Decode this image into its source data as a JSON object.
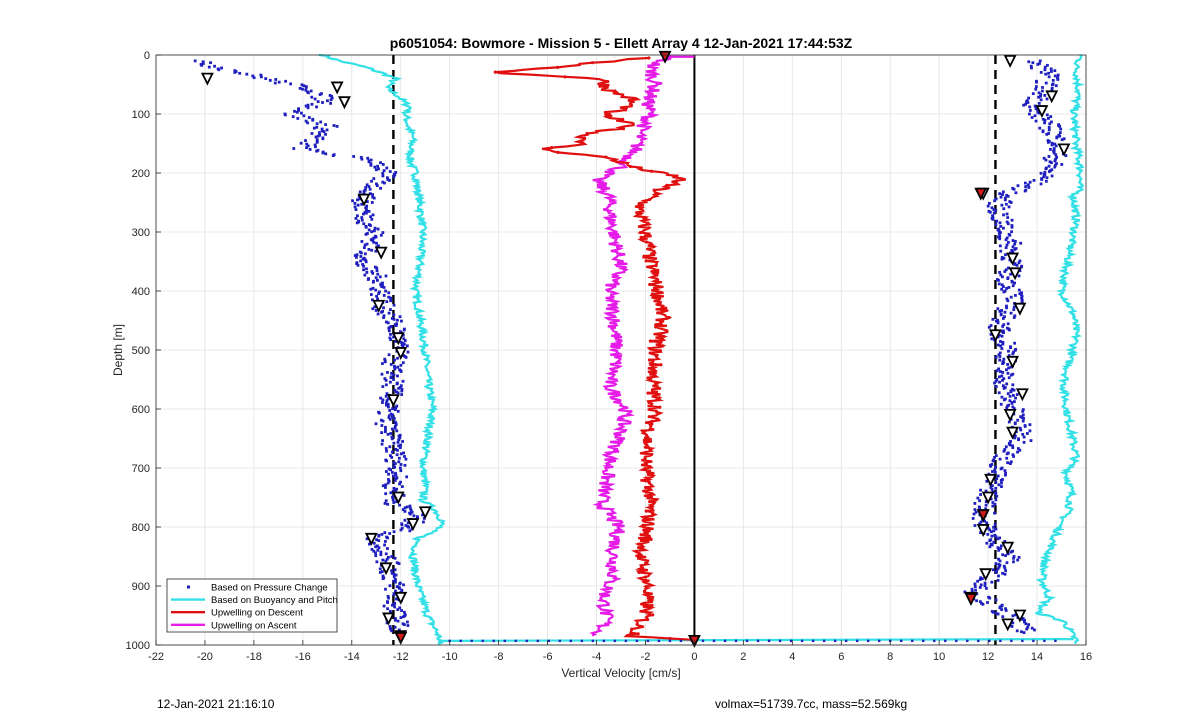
{
  "chart_data": {
    "type": "scatter",
    "title": "p6051054: Bowmore - Mission 5 - Ellett Array 4 12-Jan-2021 17:44:53Z",
    "xlabel": "Vertical Velocity [cm/s]",
    "ylabel": "Depth [m]",
    "xlim": [
      -22,
      16
    ],
    "ylim": [
      0,
      1000
    ],
    "y_reversed": true,
    "grid": true,
    "legend_position": "bottom-left",
    "x_ticks": [
      "-22",
      "-20",
      "-18",
      "-16",
      "-14",
      "-12",
      "-10",
      "-8",
      "-6",
      "-4",
      "-2",
      "0",
      "2",
      "4",
      "6",
      "8",
      "10",
      "12",
      "14",
      "16"
    ],
    "y_ticks": [
      "0",
      "100",
      "200",
      "300",
      "400",
      "500",
      "600",
      "700",
      "800",
      "900",
      "1000"
    ],
    "reference_lines": [
      {
        "x": -12.3,
        "style": "dashed",
        "color": "#000000"
      },
      {
        "x": 12.3,
        "style": "dashed",
        "color": "#000000"
      },
      {
        "x": 0,
        "style": "solid",
        "color": "#000000"
      }
    ],
    "series": [
      {
        "name": "Based on Pressure Change",
        "style": "points",
        "color": "#1f1fbf",
        "descent": {
          "depth": [
            10,
            25,
            40,
            60,
            80,
            100,
            120,
            140,
            160,
            180,
            200,
            230,
            250,
            280,
            300,
            330,
            350,
            380,
            400,
            430,
            460,
            500,
            530,
            560,
            590,
            620,
            650,
            680,
            700,
            730,
            760,
            780,
            800,
            820,
            850,
            880,
            910,
            940,
            960,
            980
          ],
          "values": [
            -20.5,
            -19,
            -17.5,
            -15.5,
            -15,
            -16.5,
            -15,
            -15.5,
            -16,
            -13,
            -12.6,
            -13.2,
            -13.6,
            -13.4,
            -13.1,
            -13.2,
            -13.7,
            -12.9,
            -12.8,
            -12.7,
            -12.2,
            -12.1,
            -12.4,
            -12.3,
            -12.5,
            -12.6,
            -12.4,
            -12.2,
            -12.1,
            -12.3,
            -12.2,
            -11.4,
            -11.6,
            -13,
            -12.6,
            -12.4,
            -12.2,
            -12.3,
            -12.1,
            -12.2
          ]
        },
        "ascent": {
          "depth": [
            10,
            30,
            60,
            90,
            120,
            150,
            180,
            210,
            240,
            260,
            290,
            320,
            350,
            380,
            410,
            440,
            470,
            500,
            530,
            560,
            590,
            620,
            650,
            680,
            710,
            740,
            760,
            790,
            820,
            850,
            880,
            910,
            940,
            960,
            980
          ],
          "values": [
            13.8,
            14.5,
            14.3,
            13.8,
            14.5,
            14.9,
            14.7,
            14.2,
            12.6,
            12.4,
            12.6,
            12.9,
            13,
            12.8,
            13.1,
            12.7,
            12.4,
            12.9,
            12.6,
            12.7,
            12.9,
            13.2,
            13.5,
            12.7,
            12.3,
            12.1,
            11.9,
            11.8,
            12.2,
            12.9,
            12.3,
            11.5,
            12.4,
            13.2,
            13.6
          ]
        },
        "markers_descent_depth": [
          40,
          55,
          80,
          245,
          335,
          425,
          480,
          505,
          585,
          750,
          775,
          795,
          820,
          870,
          920,
          955,
          985
        ],
        "markers_descent_values": [
          -19.9,
          -14.6,
          -14.3,
          -13.5,
          -12.8,
          -12.9,
          -12.1,
          -12,
          -12.3,
          -12.1,
          -11,
          -11.5,
          -13.2,
          -12.6,
          -12,
          -12.5,
          -12
        ],
        "markers_ascent_depth": [
          10,
          70,
          95,
          160,
          235,
          345,
          370,
          430,
          475,
          520,
          575,
          610,
          640,
          720,
          750,
          780,
          805,
          835,
          880,
          920,
          950,
          965
        ],
        "markers_ascent_values": [
          12.9,
          14.6,
          14.2,
          15.1,
          11.8,
          13,
          13.1,
          13.3,
          12.3,
          13,
          13.4,
          12.9,
          13,
          12.1,
          12,
          11.8,
          11.8,
          12.8,
          11.9,
          11.3,
          13.3,
          12.8
        ]
      },
      {
        "name": "Based on Buoyancy and Pitch",
        "style": "line",
        "color": "#33e0e6",
        "descent": {
          "depth": [
            0,
            10,
            20,
            30,
            40,
            55,
            70,
            90,
            100,
            120,
            140,
            160,
            180,
            200,
            230,
            260,
            300,
            350,
            400,
            450,
            500,
            550,
            600,
            650,
            700,
            730,
            755,
            770,
            790,
            800,
            820,
            850,
            900,
            950,
            980,
            992,
            998
          ],
          "values": [
            -15.2,
            -14.5,
            -13.5,
            -12.8,
            -12.2,
            -12.6,
            -12.1,
            -11.6,
            -11.8,
            -11.7,
            -11.5,
            -11.6,
            -11.6,
            -11.4,
            -11.3,
            -11.2,
            -11.1,
            -11.2,
            -11.4,
            -11.2,
            -11,
            -10.9,
            -10.7,
            -10.9,
            -11.1,
            -11,
            -11.1,
            -10.6,
            -10.3,
            -10.4,
            -11.3,
            -11.5,
            -11.3,
            -10.9,
            -10.5,
            -10.4,
            -10.5
          ]
        },
        "ascent": {
          "depth": [
            0,
            20,
            60,
            100,
            150,
            200,
            230,
            240,
            280,
            320,
            360,
            400,
            440,
            480,
            520,
            560,
            600,
            640,
            680,
            710,
            740,
            770,
            800,
            830,
            860,
            890,
            920,
            945,
            960,
            980,
            992,
            998
          ],
          "values": [
            15.8,
            15.6,
            15.7,
            15.5,
            15.6,
            15.8,
            15.7,
            15.5,
            15.6,
            15.4,
            15.2,
            15.0,
            15.5,
            15.6,
            15.3,
            15.1,
            15.2,
            15.4,
            15.6,
            15.2,
            15.4,
            15.3,
            14.9,
            14.6,
            14.3,
            14.2,
            14.5,
            14.0,
            15.1,
            15.4,
            15.6,
            15.5
          ]
        }
      },
      {
        "name": "Upwelling on Descent",
        "style": "line",
        "color": "#e01010",
        "depth": [
          5,
          15,
          25,
          30,
          40,
          60,
          75,
          90,
          100,
          120,
          135,
          150,
          160,
          175,
          190,
          205,
          210,
          230,
          260,
          300,
          350,
          400,
          450,
          500,
          550,
          600,
          650,
          700,
          750,
          800,
          850,
          900,
          950,
          985,
          992
        ],
        "values": [
          -2,
          -4.5,
          -6.8,
          -8.2,
          -3.8,
          -3.5,
          -2.5,
          -2.8,
          -3.8,
          -2.5,
          -4.5,
          -4.5,
          -6.3,
          -3.4,
          -2.5,
          -0.9,
          -0.5,
          -1.5,
          -2.3,
          -2,
          -1.8,
          -1.5,
          -1.3,
          -1.6,
          -1.7,
          -1.6,
          -1.9,
          -2,
          -1.8,
          -1.9,
          -2.2,
          -1.9,
          -2,
          -2.5,
          0.5
        ]
      },
      {
        "name": "Upwelling on Ascent",
        "style": "line",
        "color": "#e51ce8",
        "depth": [
          2,
          20,
          50,
          80,
          100,
          130,
          160,
          190,
          210,
          240,
          280,
          320,
          360,
          400,
          440,
          480,
          520,
          560,
          600,
          640,
          680,
          720,
          760,
          800,
          840,
          880,
          920,
          960,
          985
        ],
        "values": [
          -1,
          -1.8,
          -1.6,
          -1.9,
          -1.8,
          -2.2,
          -2.4,
          -3,
          -4,
          -3.5,
          -3.4,
          -3.2,
          -3,
          -3.5,
          -3.3,
          -3.2,
          -3.2,
          -3.5,
          -2.8,
          -3,
          -3.4,
          -3.6,
          -3.8,
          -3.1,
          -3.3,
          -3.3,
          -3.7,
          -3.6,
          -4
        ]
      }
    ]
  },
  "footer": {
    "timestamp": "12-Jan-2021 21:16:10",
    "summary": "volmax=51739.7cc, mass=52.569kg"
  }
}
